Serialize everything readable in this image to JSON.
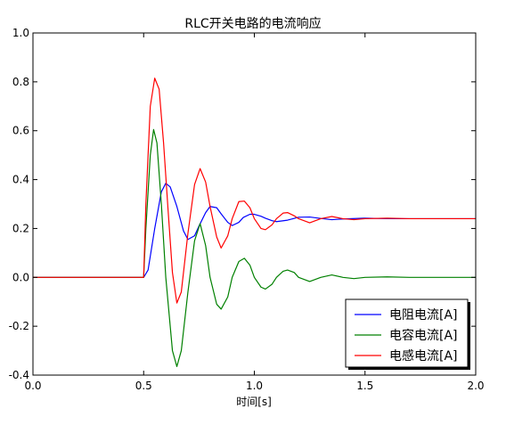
{
  "chart_data": {
    "type": "line",
    "title": "RLC开关电路的电流响应",
    "xlabel": "时间[s]",
    "ylabel": "",
    "xlim": [
      0.0,
      2.0
    ],
    "ylim": [
      -0.4,
      1.0
    ],
    "xticks": [
      "0.0",
      "0.5",
      "1.0",
      "1.5",
      "2.0"
    ],
    "yticks": [
      "-0.4",
      "-0.2",
      "0.0",
      "0.2",
      "0.4",
      "0.6",
      "0.8",
      "1.0"
    ],
    "grid": false,
    "legend_position": "lower-right",
    "series": [
      {
        "name": "电阻电流[A]",
        "color": "#0000ff",
        "x": [
          0.0,
          0.5,
          0.52,
          0.55,
          0.58,
          0.6,
          0.62,
          0.65,
          0.68,
          0.7,
          0.73,
          0.75,
          0.78,
          0.8,
          0.83,
          0.85,
          0.88,
          0.9,
          0.93,
          0.95,
          0.98,
          1.0,
          1.03,
          1.05,
          1.08,
          1.1,
          1.15,
          1.2,
          1.25,
          1.3,
          1.35,
          1.4,
          1.5,
          1.6,
          1.8,
          2.0
        ],
        "y": [
          0.0,
          0.0,
          0.03,
          0.2,
          0.35,
          0.385,
          0.37,
          0.29,
          0.19,
          0.155,
          0.17,
          0.21,
          0.265,
          0.29,
          0.285,
          0.26,
          0.225,
          0.212,
          0.225,
          0.245,
          0.258,
          0.258,
          0.25,
          0.242,
          0.232,
          0.228,
          0.234,
          0.246,
          0.247,
          0.241,
          0.236,
          0.239,
          0.242,
          0.24,
          0.24,
          0.24
        ]
      },
      {
        "name": "电容电流[A]",
        "color": "#008000",
        "x": [
          0.0,
          0.5,
          0.51,
          0.53,
          0.545,
          0.56,
          0.58,
          0.6,
          0.63,
          0.65,
          0.67,
          0.7,
          0.73,
          0.755,
          0.78,
          0.8,
          0.83,
          0.85,
          0.88,
          0.9,
          0.93,
          0.955,
          0.98,
          1.0,
          1.03,
          1.05,
          1.08,
          1.1,
          1.13,
          1.15,
          1.18,
          1.2,
          1.25,
          1.3,
          1.35,
          1.4,
          1.45,
          1.5,
          1.6,
          1.7,
          2.0
        ],
        "y": [
          0.0,
          0.0,
          0.2,
          0.5,
          0.605,
          0.55,
          0.3,
          0.0,
          -0.3,
          -0.365,
          -0.3,
          -0.06,
          0.15,
          0.22,
          0.13,
          0.0,
          -0.11,
          -0.13,
          -0.08,
          0.0,
          0.065,
          0.078,
          0.05,
          0.0,
          -0.04,
          -0.048,
          -0.028,
          0.0,
          0.025,
          0.03,
          0.02,
          0.0,
          -0.017,
          0.0,
          0.01,
          0.0,
          -0.005,
          0.0,
          0.002,
          0.0,
          0.0
        ]
      },
      {
        "name": "电感电流[A]",
        "color": "#ff0000",
        "x": [
          0.0,
          0.5,
          0.51,
          0.53,
          0.55,
          0.57,
          0.59,
          0.61,
          0.63,
          0.65,
          0.67,
          0.7,
          0.73,
          0.755,
          0.78,
          0.8,
          0.83,
          0.85,
          0.88,
          0.9,
          0.93,
          0.955,
          0.98,
          1.0,
          1.03,
          1.05,
          1.08,
          1.1,
          1.13,
          1.15,
          1.18,
          1.2,
          1.25,
          1.3,
          1.35,
          1.4,
          1.45,
          1.5,
          1.6,
          1.7,
          2.0
        ],
        "y": [
          0.0,
          0.0,
          0.3,
          0.7,
          0.815,
          0.77,
          0.55,
          0.28,
          0.02,
          -0.105,
          -0.06,
          0.18,
          0.38,
          0.445,
          0.39,
          0.29,
          0.165,
          0.12,
          0.17,
          0.24,
          0.31,
          0.312,
          0.285,
          0.24,
          0.2,
          0.195,
          0.215,
          0.24,
          0.263,
          0.265,
          0.252,
          0.24,
          0.223,
          0.24,
          0.249,
          0.24,
          0.236,
          0.24,
          0.242,
          0.24,
          0.24
        ]
      }
    ]
  }
}
